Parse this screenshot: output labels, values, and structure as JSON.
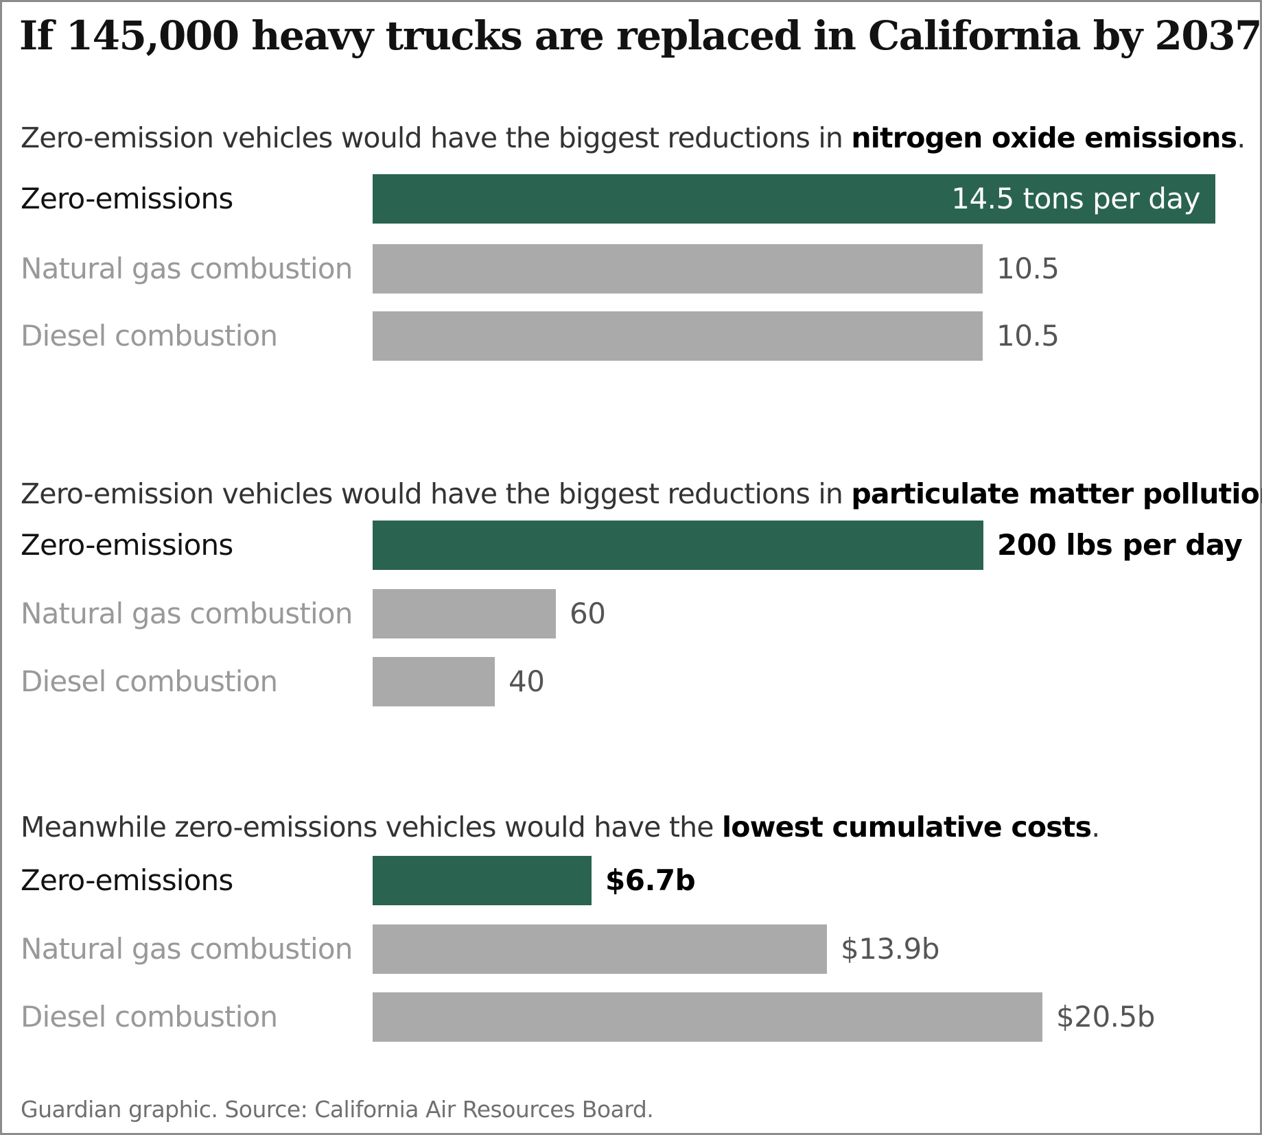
{
  "title": "If 145,000 heavy trucks are replaced in California by 2037...",
  "source": "Guardian graphic. Source: California Air Resources Board.",
  "colors": {
    "highlight": "#2a6450",
    "muted": "#aaaaaa"
  },
  "chart_data": [
    {
      "type": "bar",
      "orientation": "horizontal",
      "subtitle_plain": "Zero-emission vehicles would have the biggest reductions in ",
      "subtitle_bold": "nitrogen oxide emissions",
      "subtitle_end": ".",
      "categories": [
        "Zero-emissions",
        "Natural gas combustion",
        "Diesel combustion"
      ],
      "values": [
        14.5,
        10.5,
        10.5
      ],
      "value_labels": [
        "14.5 tons per day",
        "10.5",
        "10.5"
      ],
      "unit": "tons per day",
      "xlim": [
        0,
        14.5
      ],
      "highlight_index": 0,
      "label_inside_index": 0
    },
    {
      "type": "bar",
      "orientation": "horizontal",
      "subtitle_plain": "Zero-emission vehicles would have the biggest reductions in ",
      "subtitle_bold": "particulate matter pollution",
      "subtitle_end": ".",
      "categories": [
        "Zero-emissions",
        "Natural gas combustion",
        "Diesel combustion"
      ],
      "values": [
        200,
        60,
        40
      ],
      "value_labels": [
        "200 lbs per day",
        "60",
        "40"
      ],
      "unit": "lbs per day",
      "xlim": [
        0,
        276
      ],
      "highlight_index": 0,
      "label_inside_index": -1
    },
    {
      "type": "bar",
      "orientation": "horizontal",
      "subtitle_plain": "Meanwhile zero-emissions vehicles would have the ",
      "subtitle_bold": "lowest cumulative costs",
      "subtitle_end": ".",
      "categories": [
        "Zero-emissions",
        "Natural gas combustion",
        "Diesel combustion"
      ],
      "values": [
        6.7,
        13.9,
        20.5
      ],
      "value_labels": [
        "$6.7b",
        "$13.9b",
        "$20.5b"
      ],
      "unit": "$ billion",
      "xlim": [
        0,
        25.8
      ],
      "highlight_index": 0,
      "label_inside_index": -1
    }
  ]
}
